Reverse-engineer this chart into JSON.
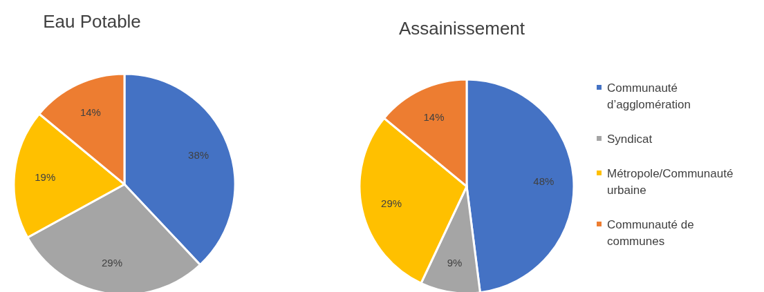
{
  "chart_data": [
    {
      "type": "pie",
      "title": "Eau Potable",
      "categories": [
        null,
        null,
        null,
        null
      ],
      "values": [
        38,
        29,
        19,
        14
      ],
      "colors": [
        "#4472c4",
        "#a5a5a5",
        "#ffc000",
        "#ed7d31"
      ],
      "value_labels": [
        "38%",
        "29%",
        "19%",
        "14%"
      ],
      "legend": false
    },
    {
      "type": "pie",
      "title": "Assainissement",
      "categories": [
        "Communauté d’agglomération",
        "Syndicat",
        "Métropole/Communauté urbaine",
        "Communauté de communes"
      ],
      "values": [
        48,
        9,
        29,
        14
      ],
      "colors": [
        "#4472c4",
        "#a5a5a5",
        "#ffc000",
        "#ed7d31"
      ],
      "value_labels": [
        "48%",
        "9%",
        "29%",
        "14%"
      ],
      "legend": "right"
    }
  ]
}
